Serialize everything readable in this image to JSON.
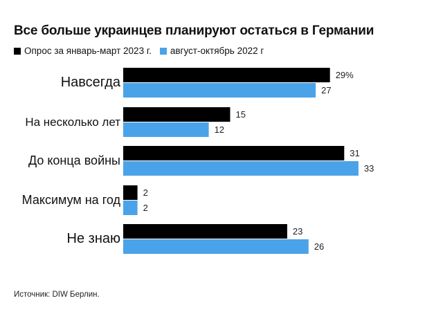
{
  "chart_data": {
    "type": "bar",
    "orientation": "horizontal",
    "title": "Все больше украинцев планируют остаться в Германии",
    "categories": [
      "Навсегда",
      "На несколько лет",
      "До конца войны",
      "Максимум на год",
      "Не знаю"
    ],
    "series": [
      {
        "name": "Опрос за январь-март 2023 г.",
        "color": "#000000",
        "values": [
          29,
          15,
          31,
          2,
          23
        ],
        "labels": [
          "29%",
          "15",
          "31",
          "2",
          "23"
        ]
      },
      {
        "name": "август-октябрь 2022 г",
        "color": "#4aa3e8",
        "values": [
          27,
          12,
          33,
          2,
          26
        ],
        "labels": [
          "27",
          "12",
          "33",
          "2",
          "26"
        ]
      }
    ],
    "xlim": [
      0,
      35
    ],
    "grid": false,
    "legend_position": "top-left"
  },
  "source": "Источник: DIW Берлин."
}
